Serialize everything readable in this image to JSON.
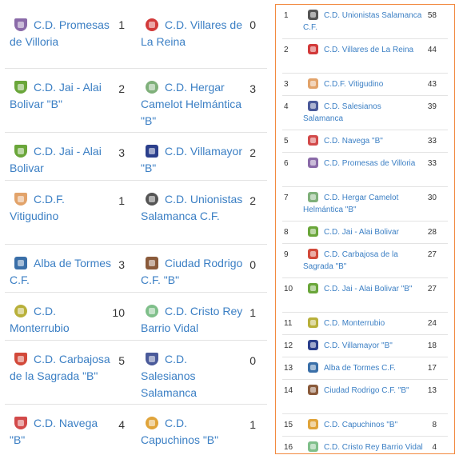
{
  "results": [
    {
      "home": {
        "name": "C.D. Promesas de Villoria",
        "icon": "promesas-villoria-crest-icon",
        "color": "#8a6aa8"
      },
      "home_score": "1",
      "away": {
        "name": "C.D. Villares de La Reina",
        "icon": "villares-crest-icon",
        "color": "#d23a3a"
      },
      "away_score": "0"
    },
    {
      "home": {
        "name": "C.D. Jai - Alai Bolivar \"B\"",
        "icon": "jai-alai-crest-icon",
        "color": "#6aa63a"
      },
      "home_score": "2",
      "away": {
        "name": "C.D. Hergar Camelot Helmántica \"B\"",
        "icon": "hergar-crest-icon",
        "color": "#7fb07a"
      },
      "away_score": "3"
    },
    {
      "home": {
        "name": "C.D. Jai - Alai Bolivar",
        "icon": "jai-alai-crest-icon",
        "color": "#6aa63a"
      },
      "home_score": "3",
      "away": {
        "name": "C.D. Villamayor \"B\"",
        "icon": "villamayor-crest-icon",
        "color": "#2b3f8c"
      },
      "away_score": "2"
    },
    {
      "home": {
        "name": "C.D.F. Vitigudino",
        "icon": "vitigudino-crest-icon",
        "color": "#e2a36a"
      },
      "home_score": "1",
      "away": {
        "name": "C.D. Unionistas Salamanca C.F.",
        "icon": "unionistas-crest-icon",
        "color": "#555555"
      },
      "away_score": "2"
    },
    {
      "home": {
        "name": "Alba de Tormes C.F.",
        "icon": "alba-tormes-crest-icon",
        "color": "#3a6fa8"
      },
      "home_score": "3",
      "away": {
        "name": "Ciudad Rodrigo C.F. \"B\"",
        "icon": "ciudad-rodrigo-crest-icon",
        "color": "#8a5a3a"
      },
      "away_score": "0"
    },
    {
      "home": {
        "name": "C.D. Monterrubio",
        "icon": "monterrubio-crest-icon",
        "color": "#b8b03a"
      },
      "home_score": "10",
      "away": {
        "name": "C.D. Cristo Rey Barrio Vidal",
        "icon": "cristo-rey-crest-icon",
        "color": "#7fbf8a"
      },
      "away_score": "1"
    },
    {
      "home": {
        "name": "C.D. Carbajosa de la Sagrada \"B\"",
        "icon": "carbajosa-crest-icon",
        "color": "#d2493a"
      },
      "home_score": "5",
      "away": {
        "name": "C.D. Salesianos Salamanca",
        "icon": "salesianos-crest-icon",
        "color": "#4a5a9a"
      },
      "away_score": "0"
    },
    {
      "home": {
        "name": "C.D. Navega \"B\"",
        "icon": "navega-crest-icon",
        "color": "#d24a4a"
      },
      "home_score": "4",
      "away": {
        "name": "C.D. Capuchinos \"B\"",
        "icon": "capuchinos-crest-icon",
        "color": "#e0a43a"
      },
      "away_score": "1"
    }
  ],
  "standings": [
    {
      "pos": "1",
      "name": "C.D. Unionistas Salamanca C.F.",
      "pts": "58",
      "icon": "unionistas-crest-icon",
      "color": "#555555"
    },
    {
      "pos": "2",
      "name": "C.D. Villares de La Reina",
      "pts": "44",
      "icon": "villares-crest-icon",
      "color": "#d23a3a"
    },
    {
      "pos": "3",
      "name": "C.D.F. Vitigudino",
      "pts": "43",
      "icon": "vitigudino-crest-icon",
      "color": "#e2a36a"
    },
    {
      "pos": "4",
      "name": "C.D. Salesianos Salamanca",
      "pts": "39",
      "icon": "salesianos-crest-icon",
      "color": "#4a5a9a"
    },
    {
      "pos": "5",
      "name": "C.D. Navega \"B\"",
      "pts": "33",
      "icon": "navega-crest-icon",
      "color": "#d24a4a"
    },
    {
      "pos": "6",
      "name": "C.D. Promesas de Villoria",
      "pts": "33",
      "icon": "promesas-villoria-crest-icon",
      "color": "#8a6aa8"
    },
    {
      "pos": "7",
      "name": "C.D. Hergar Camelot Helmántica \"B\"",
      "pts": "30",
      "icon": "hergar-crest-icon",
      "color": "#7fb07a"
    },
    {
      "pos": "8",
      "name": "C.D. Jai - Alai Bolivar",
      "pts": "28",
      "icon": "jai-alai-crest-icon",
      "color": "#6aa63a"
    },
    {
      "pos": "9",
      "name": "C.D. Carbajosa de la Sagrada \"B\"",
      "pts": "27",
      "icon": "carbajosa-crest-icon",
      "color": "#d2493a"
    },
    {
      "pos": "10",
      "name": "C.D. Jai - Alai Bolivar \"B\"",
      "pts": "27",
      "icon": "jai-alai-crest-icon",
      "color": "#6aa63a"
    },
    {
      "pos": "11",
      "name": "C.D. Monterrubio",
      "pts": "24",
      "icon": "monterrubio-crest-icon",
      "color": "#b8b03a"
    },
    {
      "pos": "12",
      "name": "C.D. Villamayor \"B\"",
      "pts": "18",
      "icon": "villamayor-crest-icon",
      "color": "#2b3f8c"
    },
    {
      "pos": "13",
      "name": "Alba de Tormes C.F.",
      "pts": "17",
      "icon": "alba-tormes-crest-icon",
      "color": "#3a6fa8"
    },
    {
      "pos": "14",
      "name": "Ciudad Rodrigo C.F. \"B\"",
      "pts": "13",
      "icon": "ciudad-rodrigo-crest-icon",
      "color": "#8a5a3a"
    },
    {
      "pos": "15",
      "name": "C.D. Capuchinos \"B\"",
      "pts": "8",
      "icon": "capuchinos-crest-icon",
      "color": "#e0a43a"
    },
    {
      "pos": "16",
      "name": "C.D. Cristo Rey Barrio Vidal",
      "pts": "4",
      "icon": "cristo-rey-crest-icon",
      "color": "#7fbf8a"
    }
  ]
}
